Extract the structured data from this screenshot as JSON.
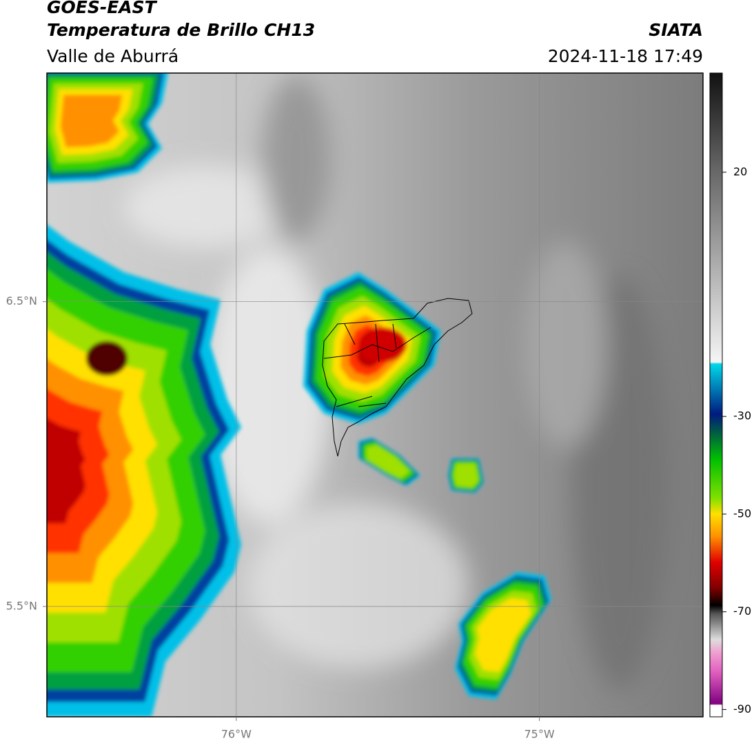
{
  "header": {
    "title": "GOES-EAST",
    "subtitle": "Temperatura de Brillo CH13",
    "region": "Valle de Aburrá",
    "source": "SIATA",
    "timestamp": "2024-11-18 17:49"
  },
  "map": {
    "xlim": [
      -76.625,
      -74.46
    ],
    "ylim": [
      5.138,
      7.25
    ],
    "xticks": [
      {
        "value": -76,
        "label": "76°W"
      },
      {
        "value": -75,
        "label": "75°W"
      }
    ],
    "yticks": [
      {
        "value": 6.5,
        "label": "6.5°N"
      },
      {
        "value": 5.5,
        "label": "5.5°N"
      }
    ],
    "grid": true
  },
  "colorbar": {
    "lim": [
      -91.5,
      40.3
    ],
    "ticks": [
      -90,
      -70,
      -50,
      -30,
      20
    ]
  }
}
